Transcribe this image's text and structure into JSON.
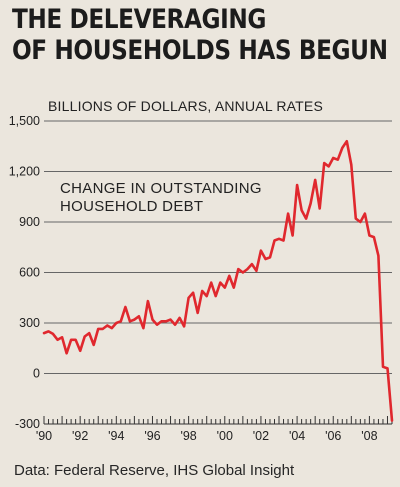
{
  "title_lines": [
    "THE DELEVERAGING",
    "OF HOUSEHOLDS HAS BEGUN"
  ],
  "source": "Data: Federal Reserve, IHS Global Insight",
  "colors": {
    "line": "#e0282e",
    "grid": "#666666",
    "background": "#ebe6dd"
  },
  "chart_data": {
    "type": "line",
    "unit_label": "BILLIONS OF DOLLARS, ANNUAL RATES",
    "annotation": [
      "CHANGE IN OUTSTANDING",
      "HOUSEHOLD DEBT"
    ],
    "xlabel": "",
    "ylabel": "",
    "ylim": [
      -300,
      1500
    ],
    "yticks": [
      -300,
      0,
      300,
      600,
      900,
      1200,
      1500
    ],
    "ytick_labels": [
      "-300",
      "0",
      "300",
      "600",
      "900",
      "1,200",
      "1,500"
    ],
    "xlim": [
      1990,
      2009.25
    ],
    "xticks": [
      1990,
      1992,
      1994,
      1996,
      1998,
      2000,
      2002,
      2004,
      2006,
      2008
    ],
    "xtick_labels": [
      "'90",
      "'92",
      "'94",
      "'96",
      "'98",
      "'00",
      "'02",
      "'04",
      "'06",
      "'08"
    ],
    "grid": "horizontal",
    "series": [
      {
        "x": [
          1990.0,
          1990.25,
          1990.5,
          1990.75,
          1991.0,
          1991.25,
          1991.5,
          1991.75,
          1992.0,
          1992.25,
          1992.5,
          1992.75,
          1993.0,
          1993.25,
          1993.5,
          1993.75,
          1994.0,
          1994.25,
          1994.5,
          1994.75,
          1995.0,
          1995.25,
          1995.5,
          1995.75,
          1996.0,
          1996.25,
          1996.5,
          1996.75,
          1997.0,
          1997.25,
          1997.5,
          1997.75,
          1998.0,
          1998.25,
          1998.5,
          1998.75,
          1999.0,
          1999.25,
          1999.5,
          1999.75,
          2000.0,
          2000.25,
          2000.5,
          2000.75,
          2001.0,
          2001.25,
          2001.5,
          2001.75,
          2002.0,
          2002.25,
          2002.5,
          2002.75,
          2003.0,
          2003.25,
          2003.5,
          2003.75,
          2004.0,
          2004.25,
          2004.5,
          2004.75,
          2005.0,
          2005.25,
          2005.5,
          2005.75,
          2006.0,
          2006.25,
          2006.5,
          2006.75,
          2007.0,
          2007.25,
          2007.5,
          2007.75,
          2008.0,
          2008.25,
          2008.5,
          2008.75,
          2009.0,
          2009.25
        ],
        "values": [
          240,
          250,
          235,
          200,
          215,
          120,
          200,
          200,
          135,
          220,
          240,
          170,
          265,
          265,
          285,
          270,
          300,
          310,
          395,
          310,
          320,
          340,
          270,
          430,
          320,
          290,
          310,
          310,
          320,
          290,
          330,
          280,
          450,
          480,
          360,
          490,
          460,
          540,
          460,
          540,
          510,
          580,
          510,
          620,
          600,
          620,
          650,
          610,
          730,
          680,
          690,
          790,
          800,
          790,
          950,
          820,
          1120,
          970,
          920,
          1010,
          1150,
          980,
          1250,
          1230,
          1280,
          1270,
          1340,
          1380,
          1240,
          920,
          900,
          950,
          820,
          810,
          700,
          40,
          30,
          -280
        ]
      }
    ]
  }
}
